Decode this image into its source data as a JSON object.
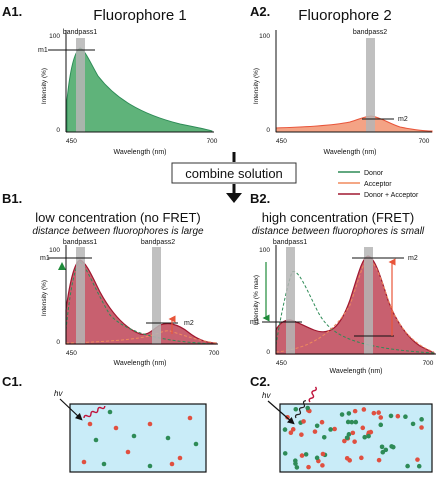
{
  "panels": {
    "a1": {
      "tag": "A1.",
      "title": "Fluorophore 1",
      "bandpass": "bandpass1",
      "marker": "m1",
      "ytop": "100",
      "yzero": "0",
      "ylabel": "Intensity (%)",
      "xmin": "450",
      "xmax": "700",
      "xlabel": "Wavelength (nm)"
    },
    "a2": {
      "tag": "A2.",
      "title": "Fluorophore 2",
      "bandpass": "bandpass2",
      "marker": "m2",
      "ytop": "100",
      "yzero": "0",
      "ylabel": "Intensity (%)",
      "xmin": "450",
      "xmax": "700",
      "xlabel": "Wavelength (nm)"
    },
    "b1": {
      "tag": "B1.",
      "title": "low concentration (no FRET)",
      "subtitle": "distance between fluorophores is large",
      "bandpass1": "bandpass1",
      "bandpass2": "bandpass2",
      "m1": "m1",
      "m2": "m2",
      "ytop": "100",
      "yzero": "0",
      "ylabel": "Intensity (%)",
      "xmin": "450",
      "xmax": "700",
      "xlabel": "Wavelength (nm)"
    },
    "b2": {
      "tag": "B2.",
      "title": "high concentration (FRET)",
      "subtitle": "distance between fluorophores is small",
      "bandpass1": "bandpass1",
      "m1": "m1",
      "m2": "m2",
      "ytop": "100",
      "yzero": "0",
      "ylabel": "Intensity (% max)",
      "xmin": "450",
      "xmax": "700",
      "xlabel": "Wavelength (nm)"
    },
    "c1": {
      "tag": "C1.",
      "hv": "hv"
    },
    "c2": {
      "tag": "C2.",
      "hv": "hv"
    }
  },
  "combine": {
    "label": "combine solution"
  },
  "legend": [
    {
      "label": "Donor",
      "color": "#2e8b57"
    },
    {
      "label": "Acceptor",
      "color": "#f08a5d"
    },
    {
      "label": "Donor + Acceptor",
      "color": "#a01830"
    }
  ],
  "colors": {
    "donor_fill": "#5fb37a",
    "acceptor_fill": "#f4a385",
    "sum_fill": "#c8606f",
    "sum_line": "#a01830",
    "bandpass": "#b5b5b5",
    "cuvette": "#c9ecf8",
    "green_dot": "#2e8b57",
    "red_dot": "#e05040"
  }
}
